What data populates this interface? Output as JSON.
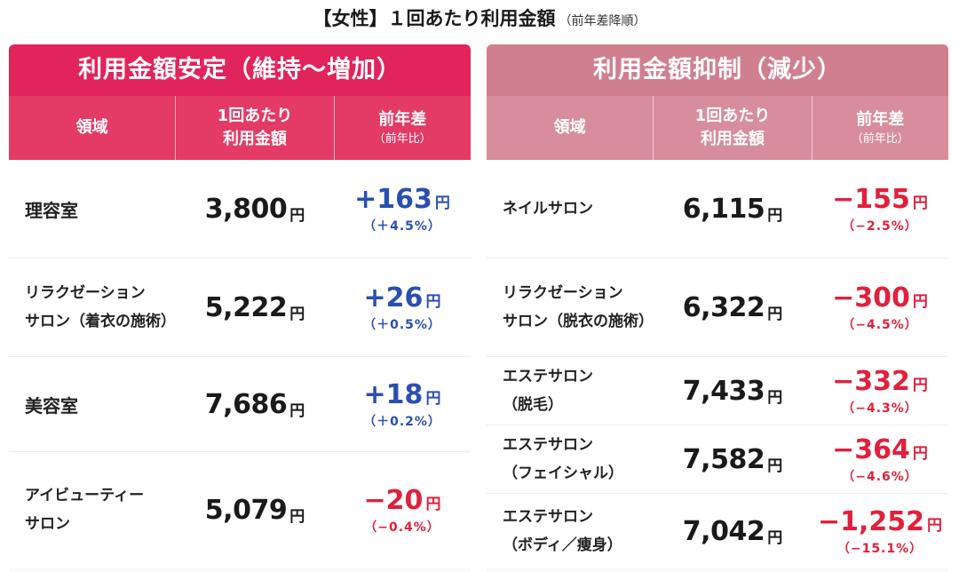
{
  "title": {
    "main": "【女性】１回あたり利用金額",
    "sub": "（前年差降順）"
  },
  "colors": {
    "left_banner": "#e1245a",
    "right_banner": "#d07f8f",
    "increase": "#2a4fb0",
    "decrease": "#e0203c"
  },
  "left": {
    "banner": "利用金額安定（維持〜増加）",
    "headers": {
      "col1": "領域",
      "col2_line1": "1回あたり",
      "col2_line2": "利用金額",
      "col3_line1": "前年差",
      "col3_line2": "（前年比）"
    },
    "rows": [
      {
        "line1": "理容室",
        "line2": "",
        "amount": "3,800",
        "unit": "円",
        "diff": "+163",
        "diff_unit": "円",
        "pct": "（＋4.5%）"
      },
      {
        "line1": "リラクゼーション",
        "line2": "サロン（着衣の施術）",
        "amount": "5,222",
        "unit": "円",
        "diff": "+26",
        "diff_unit": "円",
        "pct": "（＋0.5%）"
      },
      {
        "line1": "美容室",
        "line2": "",
        "amount": "7,686",
        "unit": "円",
        "diff": "+18",
        "diff_unit": "円",
        "pct": "（＋0.2%）"
      },
      {
        "line1": "アイビューティー",
        "line2": "サロン",
        "amount": "5,079",
        "unit": "円",
        "diff": "−20",
        "diff_unit": "円",
        "pct": "（−0.4%）"
      }
    ]
  },
  "right": {
    "banner": "利用金額抑制（減少）",
    "headers": {
      "col1": "領域",
      "col2_line1": "1回あたり",
      "col2_line2": "利用金額",
      "col3_line1": "前年差",
      "col3_line2": "（前年比）"
    },
    "rows": [
      {
        "line1": "ネイルサロン",
        "line2": "",
        "amount": "6,115",
        "unit": "円",
        "diff": "−155",
        "diff_unit": "円",
        "pct": "（−2.5%）"
      },
      {
        "line1": "リラクゼーション",
        "line2": "サロン（脱衣の施術）",
        "amount": "6,322",
        "unit": "円",
        "diff": "−300",
        "diff_unit": "円",
        "pct": "（−4.5%）"
      },
      {
        "line1": "エステサロン",
        "line2": "（脱毛）",
        "amount": "7,433",
        "unit": "円",
        "diff": "−332",
        "diff_unit": "円",
        "pct": "（−4.3%）"
      },
      {
        "line1": "エステサロン",
        "line2": "（フェイシャル）",
        "amount": "7,582",
        "unit": "円",
        "diff": "−364",
        "diff_unit": "円",
        "pct": "（−4.6%）"
      },
      {
        "line1": "エステサロン",
        "line2": "（ボディ／痩身）",
        "amount": "7,042",
        "unit": "円",
        "diff": "−1,252",
        "diff_unit": "円",
        "pct": "（−15.1%）"
      }
    ]
  }
}
